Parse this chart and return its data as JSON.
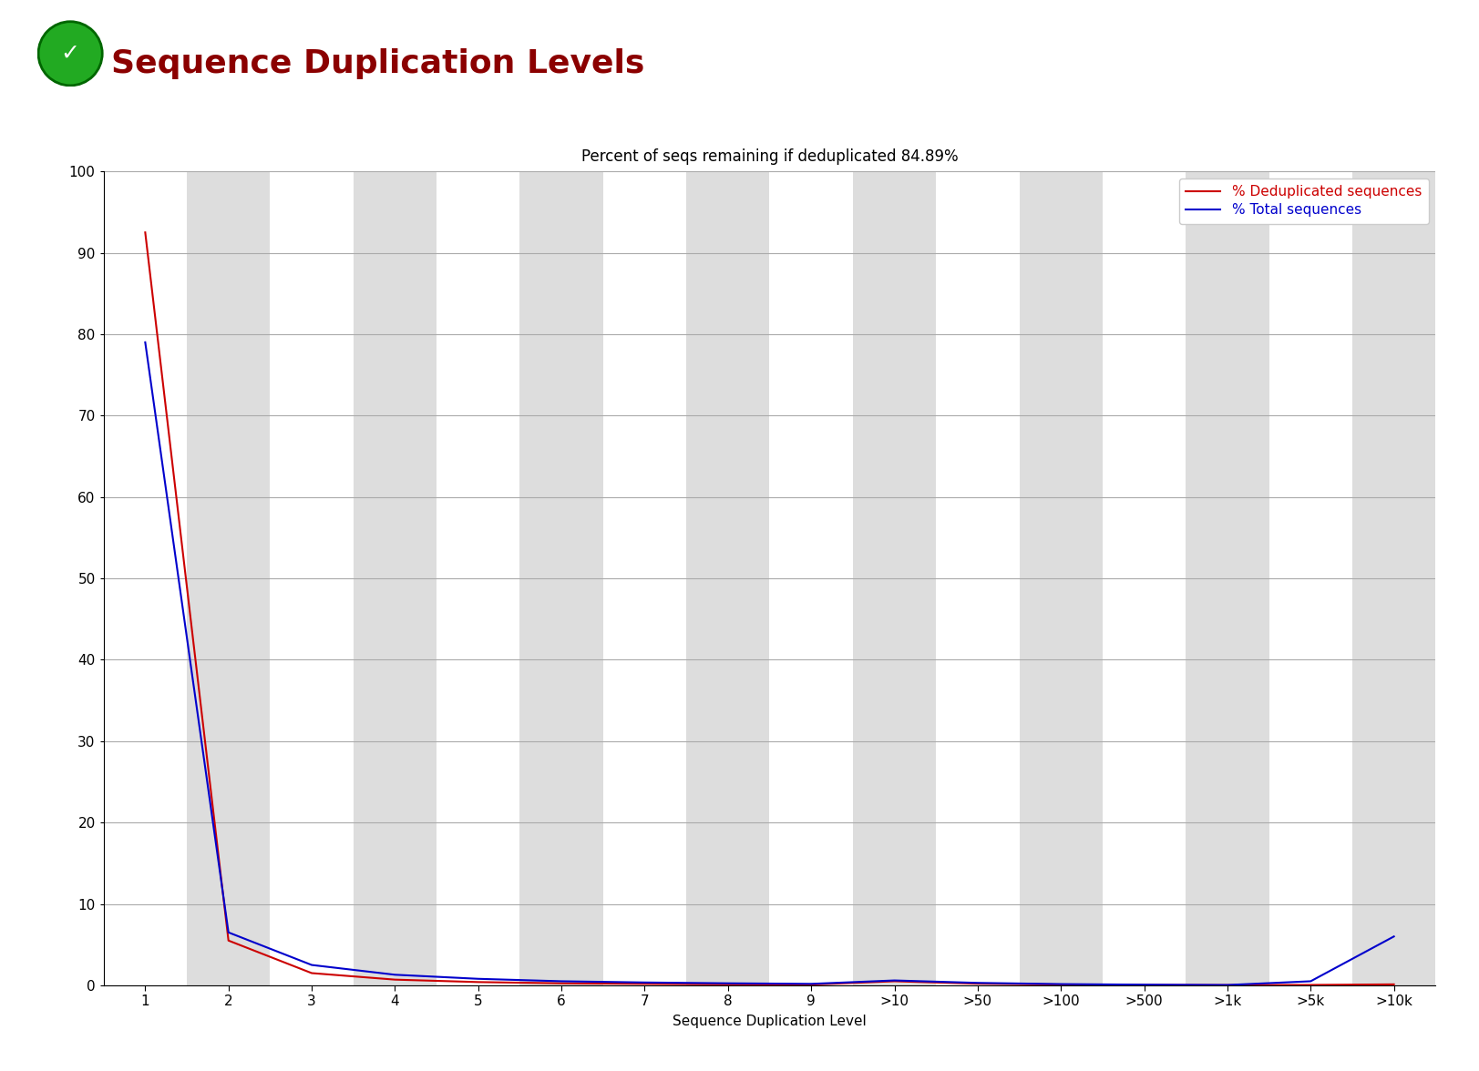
{
  "title": "Percent of seqs remaining if deduplicated 84.89%",
  "main_title": "Sequence Duplication Levels",
  "xlabel": "Sequence Duplication Level",
  "background_color": "#ffffff",
  "plot_bg_color_white": "#ffffff",
  "plot_bg_color_gray": "#dddddd",
  "x_labels": [
    "1",
    "2",
    "3",
    "4",
    "5",
    "6",
    "7",
    "8",
    "9",
    ">10",
    ">50",
    ">100",
    ">500",
    ">1k",
    ">5k",
    ">10k"
  ],
  "ylim": [
    0,
    100
  ],
  "yticks": [
    0,
    10,
    20,
    30,
    40,
    50,
    60,
    70,
    80,
    90,
    100
  ],
  "red_line_label": "% Deduplicated sequences",
  "blue_line_label": "% Total sequences",
  "red_line_color": "#cc0000",
  "blue_line_color": "#0000cc",
  "red_data": [
    92.5,
    5.5,
    1.5,
    0.7,
    0.4,
    0.25,
    0.18,
    0.12,
    0.09,
    0.5,
    0.2,
    0.1,
    0.05,
    0.03,
    0.05,
    0.12
  ],
  "blue_data": [
    79.0,
    6.5,
    2.5,
    1.3,
    0.8,
    0.5,
    0.35,
    0.25,
    0.18,
    0.6,
    0.3,
    0.15,
    0.08,
    0.04,
    0.5,
    6.0
  ],
  "grid_color": "#aaaaaa",
  "title_fontsize": 12,
  "axis_fontsize": 11,
  "legend_fontsize": 11,
  "main_title_fontsize": 26,
  "main_title_color": "#8b0000"
}
